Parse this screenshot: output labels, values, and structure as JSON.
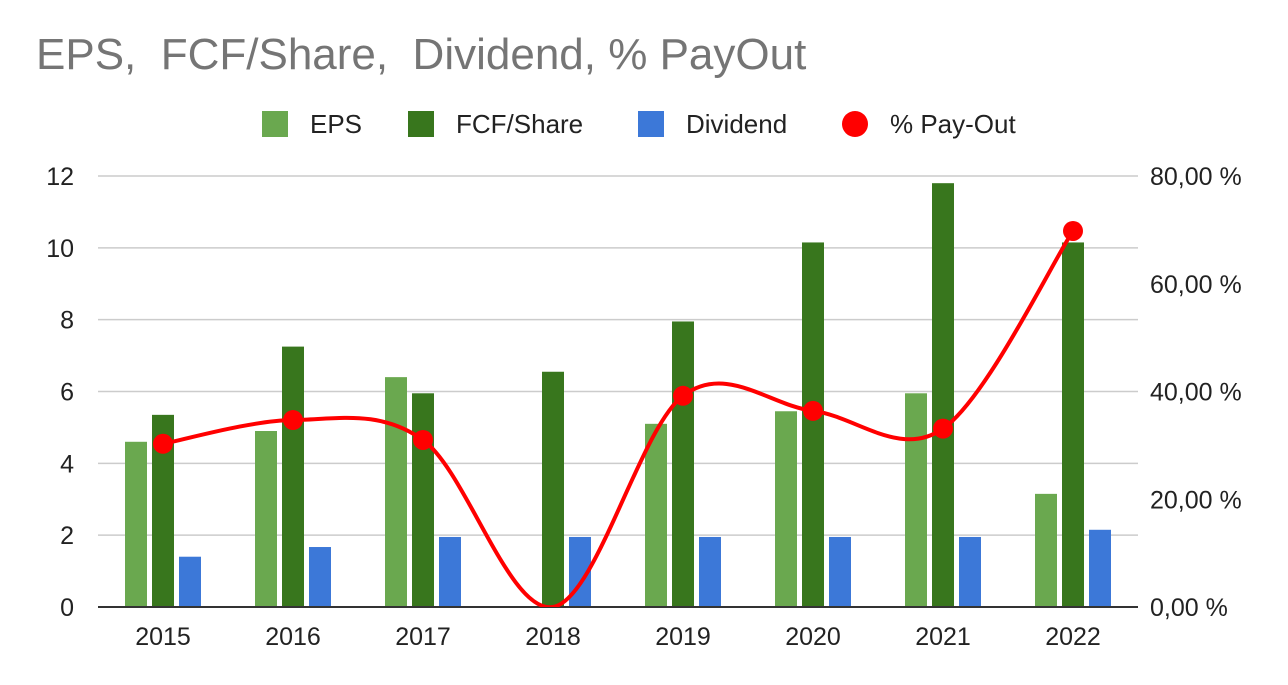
{
  "chart_data": {
    "type": "bar",
    "title": "EPS,  FCF/Share,  Dividend, % PayOut",
    "categories": [
      "2015",
      "2016",
      "2017",
      "2018",
      "2019",
      "2020",
      "2021",
      "2022"
    ],
    "series": [
      {
        "name": "EPS",
        "type": "bar",
        "axis": "left",
        "color": "#6aa84f",
        "values": [
          4.6,
          4.9,
          6.4,
          0.02,
          5.1,
          5.45,
          5.95,
          3.15
        ]
      },
      {
        "name": "FCF/Share",
        "type": "bar",
        "axis": "left",
        "color": "#38761d",
        "values": [
          5.35,
          7.25,
          5.95,
          6.55,
          7.95,
          10.15,
          11.8,
          10.15
        ]
      },
      {
        "name": "Dividend",
        "type": "bar",
        "axis": "left",
        "color": "#3c78d8",
        "values": [
          1.4,
          1.67,
          1.95,
          1.95,
          1.95,
          1.95,
          1.95,
          2.15
        ]
      },
      {
        "name": "% Pay-Out",
        "type": "line",
        "axis": "right",
        "color": "#ff0000",
        "values": [
          30.3,
          34.7,
          31.0,
          null,
          39.2,
          36.4,
          33.1,
          69.8
        ]
      }
    ],
    "y_left": {
      "min": 0,
      "max": 12,
      "ticks": [
        "0",
        "2",
        "4",
        "6",
        "8",
        "10",
        "12"
      ]
    },
    "y_right": {
      "min": 0,
      "max": 80,
      "ticks": [
        "0,00 %",
        "20,00 %",
        "40,00 %",
        "60,00 %",
        "80,00 %"
      ]
    },
    "grid": true,
    "legend_position": "top"
  }
}
